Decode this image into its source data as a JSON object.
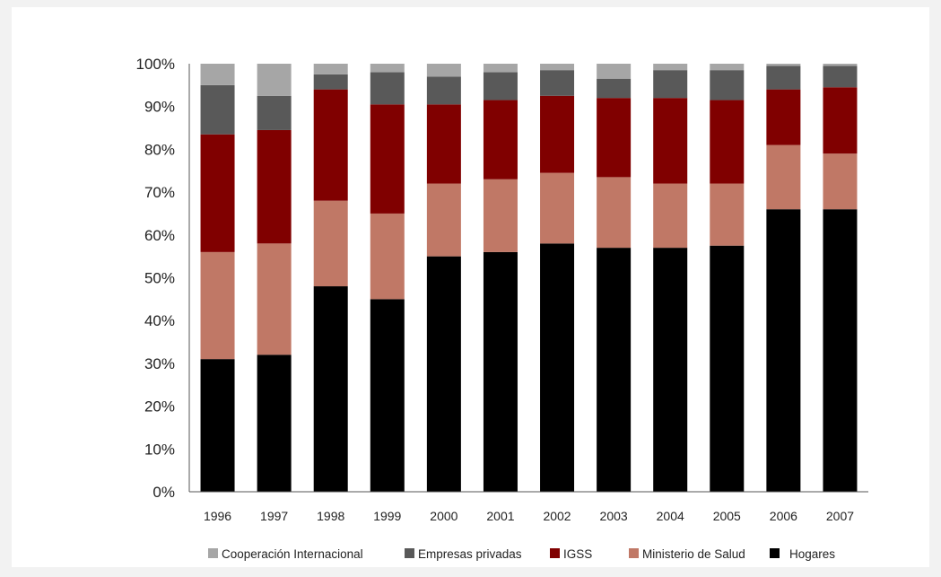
{
  "chart_data": {
    "type": "bar",
    "stacked": true,
    "categories": [
      "1996",
      "1997",
      "1998",
      "1999",
      "2000",
      "2001",
      "2002",
      "2003",
      "2004",
      "2005",
      "2006",
      "2007"
    ],
    "y_ticks": [
      "0%",
      "10%",
      "20%",
      "30%",
      "40%",
      "50%",
      "60%",
      "70%",
      "80%",
      "90%",
      "100%"
    ],
    "ylim": [
      0,
      100
    ],
    "grid": false,
    "legend_position": "bottom",
    "series": [
      {
        "name": "Hogares",
        "color": "#000000",
        "values": [
          31,
          32,
          48,
          45,
          55,
          56,
          58,
          57,
          57,
          57.5,
          66,
          66
        ]
      },
      {
        "name": "Ministerio de Salud",
        "color": "#c07866",
        "values": [
          25,
          26,
          20,
          20,
          17,
          17,
          16.5,
          16.5,
          15,
          14.5,
          15,
          13
        ]
      },
      {
        "name": "IGSS",
        "color": "#800000",
        "values": [
          27.5,
          26.5,
          26,
          25.5,
          18.5,
          18.5,
          18,
          18.5,
          20,
          19.5,
          13,
          15.5
        ]
      },
      {
        "name": "Empresas privadas",
        "color": "#595959",
        "values": [
          11.5,
          8,
          3.5,
          7.5,
          6.5,
          6.5,
          6,
          4.5,
          6.5,
          7,
          5.5,
          5
        ]
      },
      {
        "name": "Cooperación Internacional",
        "color": "#a6a6a6",
        "values": [
          5,
          7.5,
          2.5,
          2,
          3,
          2,
          1.5,
          3.5,
          1.5,
          1.5,
          0.5,
          0.5
        ]
      }
    ],
    "legend_order": [
      "Cooperación Internacional",
      "Empresas privadas",
      "IGSS",
      "Ministerio de Salud",
      "Hogares"
    ]
  }
}
